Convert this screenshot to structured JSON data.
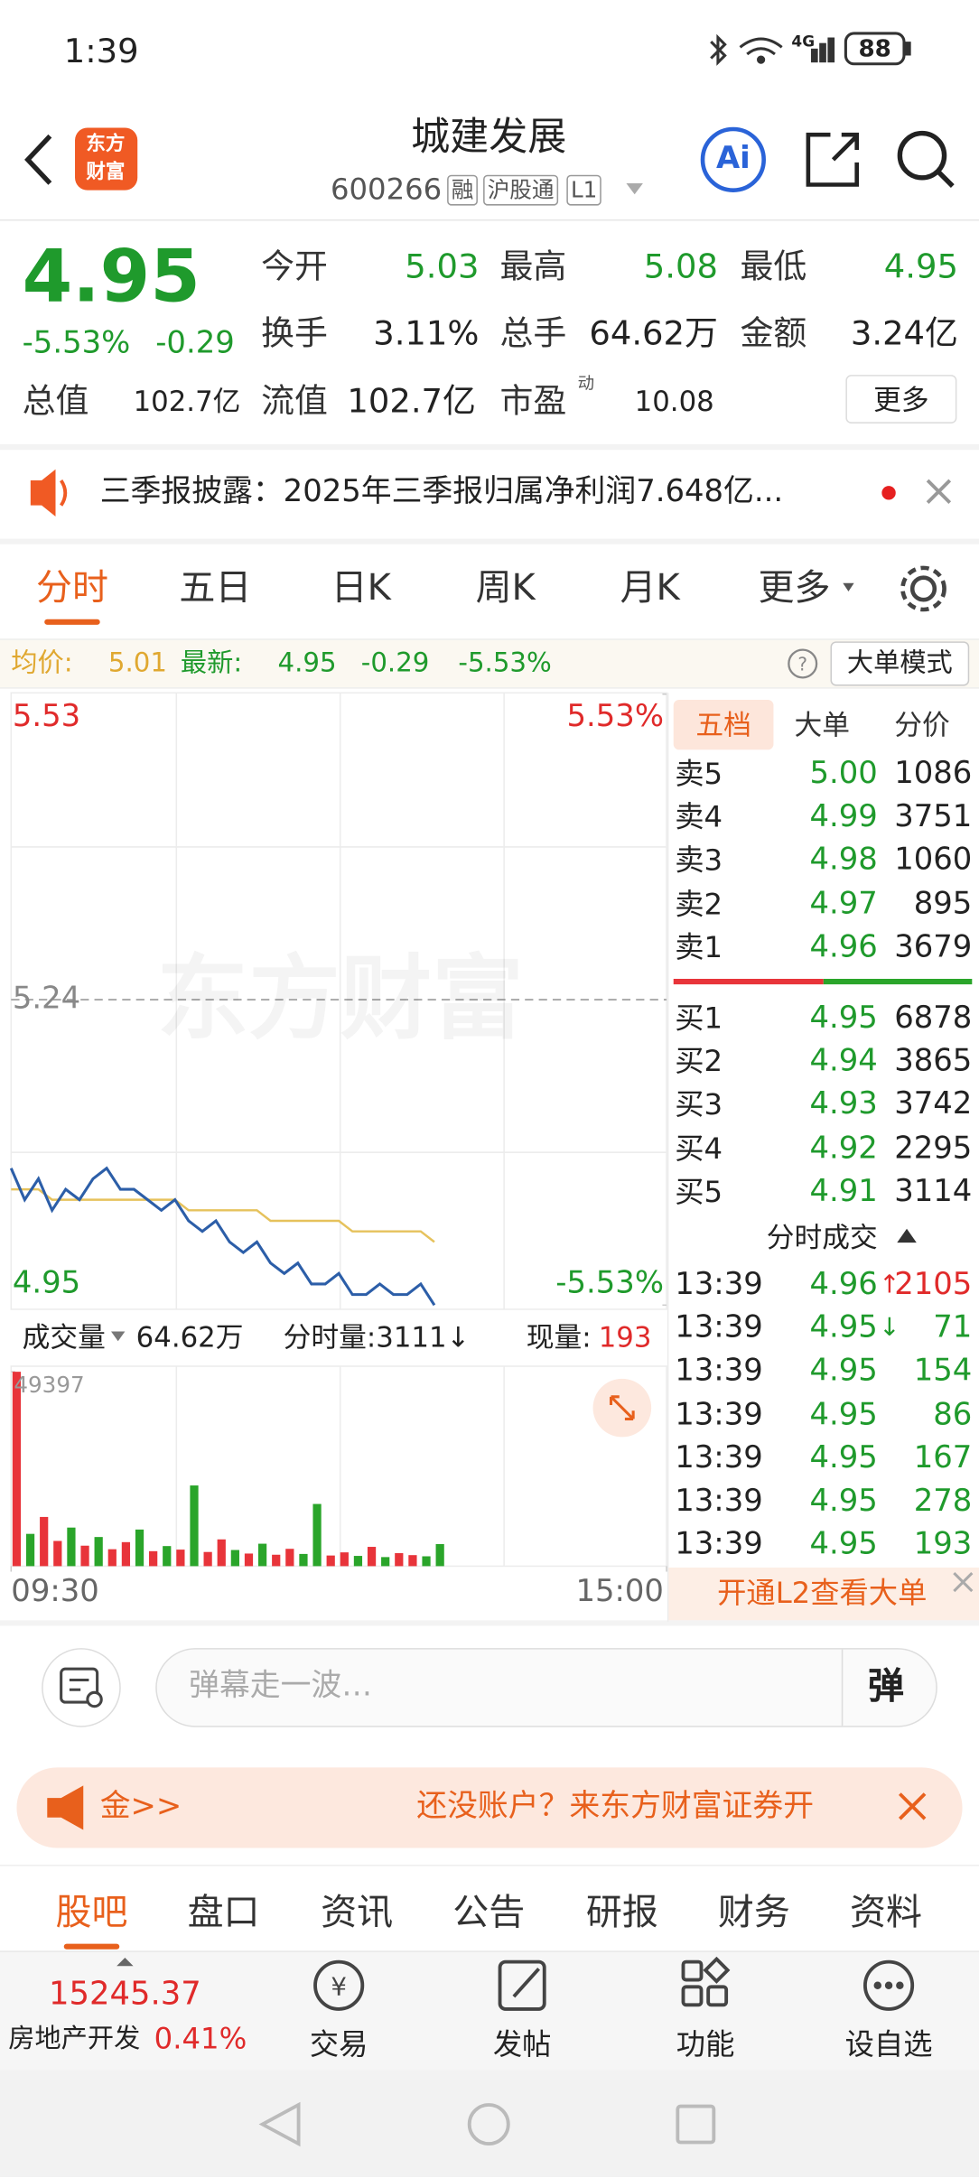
{
  "status": {
    "time": "1:39",
    "network": "4G",
    "battery": "88"
  },
  "header": {
    "logo": [
      "东方",
      "财富"
    ],
    "title": "城建发展",
    "code": "600266",
    "tags": [
      "融",
      "沪股通",
      "L1"
    ],
    "ai": "Ai"
  },
  "quote": {
    "price": "4.95",
    "change_pct": "-5.53%",
    "change": "-0.29",
    "fields": [
      {
        "label": "今开",
        "value": "5.03"
      },
      {
        "label": "最高",
        "value": "5.08"
      },
      {
        "label": "最低",
        "value": "4.95"
      },
      {
        "label": "换手",
        "value": "3.11%"
      },
      {
        "label": "总手",
        "value": "64.62万"
      },
      {
        "label": "金额",
        "value": "3.24亿"
      },
      {
        "label": "总值",
        "value": "102.7亿"
      },
      {
        "label": "流值",
        "value": "102.7亿"
      },
      {
        "label": "市盈",
        "value": "10.08"
      }
    ],
    "pe_tag": "动",
    "more": "更多"
  },
  "news": "三季报披露：2025年三季报归属净利润7.648亿...",
  "tabs": [
    "分时",
    "五日",
    "日K",
    "周K",
    "月K",
    "更多"
  ],
  "summary": {
    "avg_label": "均价:",
    "avg": "5.01",
    "latest_label": "最新:",
    "latest": "4.95",
    "change": "-0.29",
    "change_pct": "-5.53%",
    "mode": "大单模式"
  },
  "chart_data": [
    {
      "type": "line",
      "watermark": "东方财富",
      "x": [
        0,
        5,
        10,
        15,
        20,
        25,
        30,
        35,
        40,
        45,
        50,
        55,
        60,
        65,
        70,
        75,
        80,
        85,
        90,
        95,
        100,
        105,
        110,
        115,
        120,
        125,
        130,
        135,
        140,
        145,
        150,
        155
      ],
      "xlim": [
        0,
        240
      ],
      "xticks": [
        {
          "value": 0,
          "label": "09:30"
        },
        {
          "value": 240,
          "label": "15:00"
        }
      ],
      "ylim": [
        4.95,
        5.53
      ],
      "yticks": [
        4.95,
        5.24,
        5.53
      ],
      "y2lim": [
        -5.53,
        5.53
      ],
      "y2ticks": [
        {
          "value": -5.53,
          "label": "-5.53%"
        },
        {
          "value": 5.53,
          "label": "5.53%"
        }
      ],
      "series": [
        {
          "color": "#2c5ea8",
          "values": [
            5.08,
            5.05,
            5.07,
            5.04,
            5.06,
            5.05,
            5.07,
            5.08,
            5.06,
            5.06,
            5.05,
            5.04,
            5.05,
            5.03,
            5.02,
            5.03,
            5.01,
            5.0,
            5.01,
            4.99,
            4.98,
            4.99,
            4.97,
            4.97,
            4.98,
            4.96,
            4.96,
            4.97,
            4.96,
            4.96,
            4.97,
            4.95
          ]
        },
        {
          "color": "#e6c25c",
          "values": [
            5.06,
            5.06,
            5.06,
            5.05,
            5.05,
            5.05,
            5.05,
            5.05,
            5.05,
            5.05,
            5.05,
            5.05,
            5.05,
            5.04,
            5.04,
            5.04,
            5.04,
            5.04,
            5.04,
            5.03,
            5.03,
            5.03,
            5.03,
            5.03,
            5.03,
            5.02,
            5.02,
            5.02,
            5.02,
            5.02,
            5.02,
            5.01
          ]
        }
      ]
    },
    {
      "type": "bar",
      "x": [
        0,
        5,
        10,
        15,
        20,
        25,
        30,
        35,
        40,
        45,
        50,
        55,
        60,
        65,
        70,
        75,
        80,
        85,
        90,
        95,
        100,
        105,
        110,
        115,
        120,
        125,
        130,
        135,
        140,
        145,
        150,
        155
      ],
      "xlim": [
        0,
        240
      ],
      "ylim": [
        0,
        49397
      ],
      "yticks": [
        49397
      ],
      "values": [
        49397,
        8200,
        12500,
        6400,
        9800,
        5200,
        7400,
        4300,
        6100,
        9300,
        3800,
        5100,
        4200,
        20500,
        3600,
        6800,
        4100,
        3200,
        5700,
        2900,
        4400,
        3100,
        15800,
        2700,
        3500,
        2600,
        4900,
        2300,
        3300,
        2800,
        2500,
        5600
      ],
      "colors": [
        "#e8343a",
        "#2aa52a",
        "#e8343a",
        "#e8343a",
        "#2aa52a",
        "#e8343a",
        "#2aa52a",
        "#e8343a",
        "#e8343a",
        "#2aa52a",
        "#e8343a",
        "#2aa52a",
        "#e8343a",
        "#2aa52a",
        "#e8343a",
        "#e8343a",
        "#2aa52a",
        "#e8343a",
        "#2aa52a",
        "#e8343a",
        "#e8343a",
        "#2aa52a",
        "#2aa52a",
        "#e8343a",
        "#e8343a",
        "#2aa52a",
        "#e8343a",
        "#2aa52a",
        "#e8343a",
        "#e8343a",
        "#2aa52a",
        "#2aa52a"
      ]
    }
  ],
  "volume_header": {
    "label": "成交量",
    "total": "64.62万",
    "tick_label": "分时量:3111↓",
    "current_label": "现量:",
    "current": "193"
  },
  "order_book": {
    "tabs": [
      "五档",
      "大单",
      "分价"
    ],
    "asks": [
      {
        "label": "卖5",
        "price": "5.00",
        "volume": "1086"
      },
      {
        "label": "卖4",
        "price": "4.99",
        "volume": "3751"
      },
      {
        "label": "卖3",
        "price": "4.98",
        "volume": "1060"
      },
      {
        "label": "卖2",
        "price": "4.97",
        "volume": "895"
      },
      {
        "label": "卖1",
        "price": "4.96",
        "volume": "3679"
      }
    ],
    "bids": [
      {
        "label": "买1",
        "price": "4.95",
        "volume": "6878"
      },
      {
        "label": "买2",
        "price": "4.94",
        "volume": "3865"
      },
      {
        "label": "买3",
        "price": "4.93",
        "volume": "3742"
      },
      {
        "label": "买4",
        "price": "4.92",
        "volume": "2295"
      },
      {
        "label": "买5",
        "price": "4.91",
        "volume": "3114"
      }
    ]
  },
  "trades": {
    "title": "分时成交",
    "rows": [
      {
        "time": "13:39",
        "price": "4.96",
        "arrow": "↑",
        "volume": "2105"
      },
      {
        "time": "13:39",
        "price": "4.95",
        "arrow": "↓",
        "volume": "71"
      },
      {
        "time": "13:39",
        "price": "4.95",
        "volume": "154"
      },
      {
        "time": "13:39",
        "price": "4.95",
        "volume": "86"
      },
      {
        "time": "13:39",
        "price": "4.95",
        "volume": "167"
      },
      {
        "time": "13:39",
        "price": "4.95",
        "volume": "278"
      },
      {
        "time": "13:39",
        "price": "4.95",
        "volume": "193"
      }
    ]
  },
  "l2_banner": "开通L2查看大单",
  "danmaku": {
    "placeholder": "弹幕走一波…",
    "button": "弹"
  },
  "ad": {
    "left": "金>>",
    "text": "还没账户？来东方财富证券开"
  },
  "bottom_tabs": [
    "股吧",
    "盘口",
    "资讯",
    "公告",
    "研报",
    "财务",
    "资料"
  ],
  "footer": {
    "index": "15245.37",
    "sector": "房地产开发",
    "sector_change": "0.41%",
    "actions": [
      "交易",
      "发帖",
      "功能",
      "设自选"
    ]
  }
}
